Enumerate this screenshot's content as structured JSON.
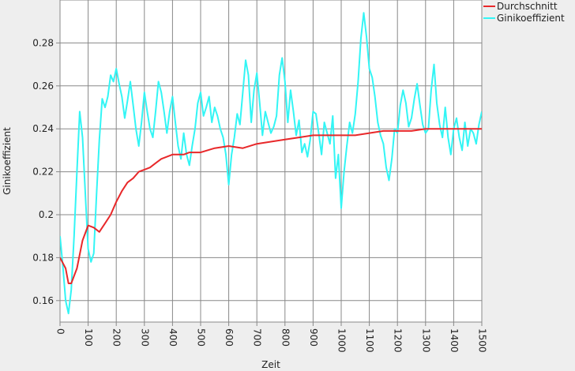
{
  "chart_data": {
    "type": "line",
    "xlabel": "Zeit",
    "ylabel": "Ginikoeffizient",
    "xlim": [
      0,
      1500
    ],
    "ylim": [
      0.15,
      0.3
    ],
    "xticks": [
      0,
      100,
      200,
      300,
      400,
      500,
      600,
      700,
      800,
      900,
      1000,
      1100,
      1200,
      1300,
      1400,
      1500
    ],
    "xtick_labels": [
      "0",
      "100",
      "200",
      "300",
      "400",
      "500",
      "600",
      "700",
      "800",
      "900",
      "1000",
      "1100",
      "1200",
      "1300",
      "1400",
      "1500"
    ],
    "yticks": [
      0.16,
      0.18,
      0.2,
      0.22,
      0.24,
      0.26,
      0.28
    ],
    "ytick_labels": [
      "0.16",
      "0.18",
      "0.2",
      "0.22",
      "0.24",
      "0.26",
      "0.28"
    ],
    "grid": true,
    "legend_position": "top-right",
    "series": [
      {
        "name": "Durchschnitt",
        "color": "#e8282a",
        "x": [
          0,
          20,
          30,
          40,
          60,
          80,
          100,
          120,
          140,
          160,
          180,
          200,
          220,
          240,
          260,
          280,
          300,
          320,
          340,
          360,
          380,
          400,
          420,
          440,
          460,
          480,
          500,
          550,
          600,
          650,
          700,
          750,
          800,
          850,
          900,
          950,
          1000,
          1050,
          1100,
          1150,
          1200,
          1250,
          1300,
          1350,
          1400,
          1450,
          1500
        ],
        "values": [
          0.18,
          0.175,
          0.168,
          0.168,
          0.175,
          0.188,
          0.195,
          0.194,
          0.192,
          0.196,
          0.2,
          0.206,
          0.211,
          0.215,
          0.217,
          0.22,
          0.221,
          0.222,
          0.224,
          0.226,
          0.227,
          0.228,
          0.228,
          0.228,
          0.229,
          0.229,
          0.229,
          0.231,
          0.232,
          0.231,
          0.233,
          0.234,
          0.235,
          0.236,
          0.237,
          0.237,
          0.237,
          0.237,
          0.238,
          0.239,
          0.239,
          0.239,
          0.24,
          0.24,
          0.24,
          0.24,
          0.24
        ]
      },
      {
        "name": "Ginikoeffizient",
        "color": "#33f5f5",
        "x": [
          0,
          10,
          20,
          30,
          40,
          50,
          60,
          70,
          80,
          90,
          100,
          110,
          120,
          130,
          140,
          150,
          160,
          170,
          180,
          190,
          200,
          210,
          220,
          230,
          240,
          250,
          260,
          270,
          280,
          290,
          300,
          310,
          320,
          330,
          340,
          350,
          360,
          370,
          380,
          390,
          400,
          410,
          420,
          430,
          440,
          450,
          460,
          470,
          480,
          490,
          500,
          510,
          520,
          530,
          540,
          550,
          560,
          570,
          580,
          590,
          600,
          610,
          620,
          630,
          640,
          650,
          660,
          670,
          680,
          690,
          700,
          710,
          720,
          730,
          740,
          750,
          760,
          770,
          780,
          790,
          800,
          810,
          820,
          830,
          840,
          850,
          860,
          870,
          880,
          890,
          900,
          910,
          920,
          930,
          940,
          950,
          960,
          970,
          980,
          990,
          1000,
          1010,
          1020,
          1030,
          1040,
          1050,
          1060,
          1070,
          1080,
          1090,
          1100,
          1110,
          1120,
          1130,
          1140,
          1150,
          1160,
          1170,
          1180,
          1190,
          1200,
          1210,
          1220,
          1230,
          1240,
          1250,
          1260,
          1270,
          1280,
          1290,
          1300,
          1310,
          1320,
          1330,
          1340,
          1350,
          1360,
          1370,
          1380,
          1390,
          1400,
          1410,
          1420,
          1430,
          1440,
          1450,
          1460,
          1470,
          1480,
          1490,
          1500
        ],
        "values": [
          0.19,
          0.176,
          0.16,
          0.154,
          0.165,
          0.19,
          0.22,
          0.248,
          0.236,
          0.21,
          0.184,
          0.178,
          0.182,
          0.21,
          0.235,
          0.254,
          0.25,
          0.255,
          0.265,
          0.262,
          0.268,
          0.261,
          0.255,
          0.245,
          0.253,
          0.262,
          0.251,
          0.24,
          0.232,
          0.243,
          0.257,
          0.248,
          0.24,
          0.236,
          0.248,
          0.262,
          0.257,
          0.248,
          0.238,
          0.248,
          0.255,
          0.243,
          0.232,
          0.226,
          0.238,
          0.228,
          0.223,
          0.232,
          0.24,
          0.252,
          0.257,
          0.246,
          0.25,
          0.255,
          0.243,
          0.25,
          0.246,
          0.24,
          0.236,
          0.228,
          0.214,
          0.228,
          0.236,
          0.247,
          0.242,
          0.257,
          0.272,
          0.265,
          0.243,
          0.258,
          0.266,
          0.252,
          0.237,
          0.248,
          0.243,
          0.238,
          0.241,
          0.246,
          0.265,
          0.273,
          0.262,
          0.243,
          0.258,
          0.248,
          0.237,
          0.244,
          0.229,
          0.233,
          0.227,
          0.235,
          0.248,
          0.247,
          0.238,
          0.228,
          0.243,
          0.238,
          0.233,
          0.246,
          0.217,
          0.228,
          0.203,
          0.22,
          0.232,
          0.243,
          0.238,
          0.247,
          0.262,
          0.282,
          0.294,
          0.283,
          0.268,
          0.264,
          0.255,
          0.243,
          0.237,
          0.233,
          0.222,
          0.216,
          0.226,
          0.24,
          0.238,
          0.251,
          0.258,
          0.252,
          0.241,
          0.245,
          0.254,
          0.261,
          0.251,
          0.242,
          0.238,
          0.24,
          0.258,
          0.27,
          0.252,
          0.242,
          0.236,
          0.25,
          0.236,
          0.228,
          0.24,
          0.245,
          0.236,
          0.23,
          0.243,
          0.232,
          0.24,
          0.238,
          0.233,
          0.242,
          0.248
        ]
      }
    ]
  }
}
